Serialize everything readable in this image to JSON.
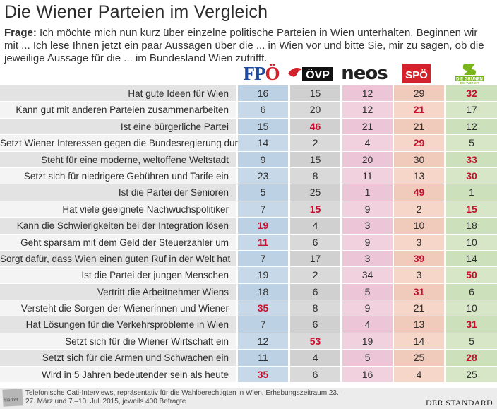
{
  "title": "Die Wiener Parteien im Vergleich",
  "question_label": "Frage:",
  "question_text": "Ich möchte mich nun kurz über einzelne politische Parteien in Wien unterhalten. Beginnen wir mit ... Ich lese Ihnen jetzt ein paar Aussagen über die ... in Wien vor und bitte Sie, mir zu sagen, ob die jeweilige Aussage für die ...  im Bundesland Wien zutrifft.",
  "parties": [
    {
      "name": "FPÖ",
      "logo_text": "FPÖ",
      "color": "#1f4a9e"
    },
    {
      "name": "ÖVP",
      "logo_text": "ÖVP",
      "color": "#111111"
    },
    {
      "name": "NEOS",
      "logo_text": "neos",
      "color": "#e8448e"
    },
    {
      "name": "SPÖ",
      "logo_text": "SPÖ",
      "color": "#d4212c"
    },
    {
      "name": "Die Grünen",
      "logo_text": "DIE GRÜNEN",
      "logo_subtext": "DIE WIENER",
      "color": "#7ab51d"
    }
  ],
  "highlight_color": "#c8102e",
  "chart_data": {
    "type": "table",
    "columns": [
      "FPÖ",
      "ÖVP",
      "NEOS",
      "SPÖ",
      "Die Grünen"
    ],
    "rows": [
      {
        "label": "Hat gute Ideen für Wien",
        "values": [
          16,
          15,
          12,
          29,
          32
        ],
        "highlight": [
          4
        ]
      },
      {
        "label": "Kann gut mit anderen Parteien zusammenarbeiten",
        "values": [
          6,
          20,
          12,
          21,
          17
        ],
        "highlight": [
          3
        ]
      },
      {
        "label": "Ist eine bürgerliche Partei",
        "values": [
          15,
          46,
          21,
          21,
          12
        ],
        "highlight": [
          1
        ]
      },
      {
        "label": "Setzt Wiener Interessen gegen die Bundesregierung durch",
        "values": [
          14,
          2,
          4,
          29,
          5
        ],
        "highlight": [
          3
        ]
      },
      {
        "label": "Steht für eine moderne, weltoffene Weltstadt",
        "values": [
          9,
          15,
          20,
          30,
          33
        ],
        "highlight": [
          4
        ]
      },
      {
        "label": "Setzt sich für niedrigere Gebühren und Tarife ein",
        "values": [
          23,
          8,
          11,
          13,
          30
        ],
        "highlight": [
          4
        ]
      },
      {
        "label": "Ist die Partei der Senioren",
        "values": [
          5,
          25,
          1,
          49,
          1
        ],
        "highlight": [
          3
        ]
      },
      {
        "label": "Hat viele geeignete Nachwuchspolitiker",
        "values": [
          7,
          15,
          9,
          2,
          15
        ],
        "highlight": [
          1,
          4
        ]
      },
      {
        "label": "Kann die Schwierigkeiten bei der Integration lösen",
        "values": [
          19,
          4,
          3,
          10,
          18
        ],
        "highlight": [
          0
        ]
      },
      {
        "label": "Geht sparsam mit dem Geld der Steuerzahler um",
        "values": [
          11,
          6,
          9,
          3,
          10
        ],
        "highlight": [
          0
        ]
      },
      {
        "label": "Sorgt dafür, dass Wien einen guten Ruf in der Welt hat",
        "values": [
          7,
          17,
          3,
          39,
          14
        ],
        "highlight": [
          3
        ]
      },
      {
        "label": "Ist die Partei der jungen Menschen",
        "values": [
          19,
          2,
          34,
          3,
          50
        ],
        "highlight": [
          4
        ]
      },
      {
        "label": "Vertritt die Arbeitnehmer Wiens",
        "values": [
          18,
          6,
          5,
          31,
          6
        ],
        "highlight": [
          3
        ]
      },
      {
        "label": "Versteht die Sorgen der Wienerinnen und Wiener",
        "values": [
          35,
          8,
          9,
          21,
          10
        ],
        "highlight": [
          0
        ]
      },
      {
        "label": "Hat Lösungen für die Verkehrsprobleme in Wien",
        "values": [
          7,
          6,
          4,
          13,
          31
        ],
        "highlight": [
          4
        ]
      },
      {
        "label": "Setzt sich für die Wiener Wirtschaft ein",
        "values": [
          12,
          53,
          19,
          14,
          5
        ],
        "highlight": [
          1
        ]
      },
      {
        "label": "Setzt sich für die Armen und Schwachen ein",
        "values": [
          11,
          4,
          5,
          25,
          28
        ],
        "highlight": [
          4
        ]
      },
      {
        "label": "Wird in 5 Jahren bedeutender sein als heute",
        "values": [
          35,
          6,
          16,
          4,
          25
        ],
        "highlight": [
          0
        ]
      }
    ]
  },
  "footer": {
    "mark": "market",
    "text": "Telefonische Cati-Interviews, repräsentativ für die Wahlberechtigten in Wien, Erhebungszeitraum 23.–27. März und 7.–10. Juli 2015, jeweils 400 Befragte",
    "publisher": "DER STANDARD"
  }
}
